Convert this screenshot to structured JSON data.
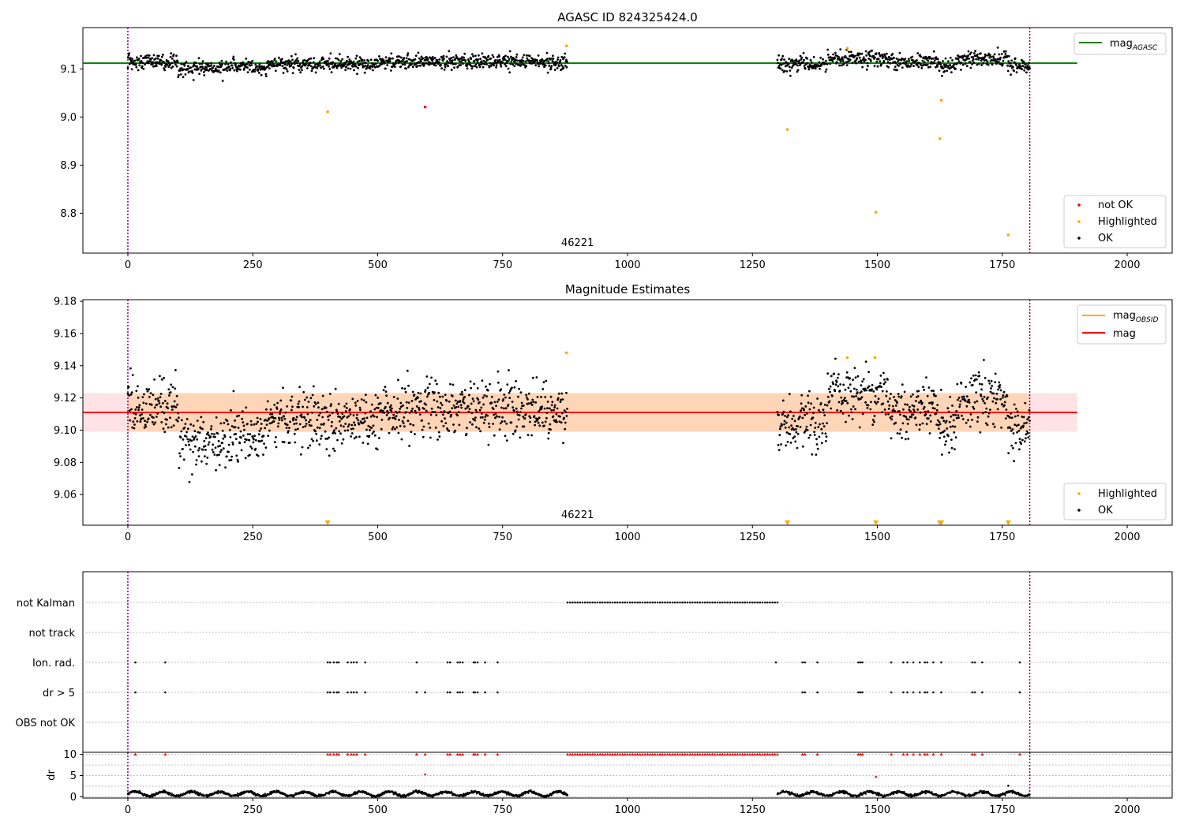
{
  "chart_data": [
    {
      "type": "scatter",
      "title": "AGASC ID 824325424.0",
      "xlabel": "",
      "ylabel": "",
      "xlim": [
        -90,
        2090
      ],
      "ylim": [
        8.717,
        9.186
      ],
      "x_ticks": [
        0,
        250,
        500,
        750,
        1000,
        1250,
        1500,
        1750,
        2000
      ],
      "y_ticks": [
        8.8,
        8.9,
        9.0,
        9.1
      ],
      "y_tick_labels": [
        "8.8",
        "8.9",
        "9.0",
        "9.1"
      ],
      "obsid_label": "46221",
      "obsid_label_x": 900,
      "boundaries": [
        0,
        1805
      ],
      "reference_line": {
        "name": "mag_AGASC",
        "value": 9.112,
        "x_range": [
          -90,
          1900
        ],
        "color": "#008000"
      },
      "series": [
        {
          "name": "OK",
          "color": "#000000",
          "segments": [
            [
              0,
              880
            ],
            [
              1300,
              1805
            ]
          ],
          "base": 9.112
        },
        {
          "name": "Highlighted",
          "color": "#FFA500",
          "points": [
            [
              400,
              9.011
            ],
            [
              878,
              9.148
            ],
            [
              1320,
              8.974
            ],
            [
              1440,
              9.143
            ],
            [
              1497,
              8.802
            ],
            [
              1625,
              8.955
            ],
            [
              1628,
              9.035
            ],
            [
              1762,
              8.755
            ]
          ]
        },
        {
          "name": "not OK",
          "color": "#FF0000",
          "points": [
            [
              595,
              9.021
            ]
          ]
        }
      ],
      "legend_lines": [
        {
          "label": "mag",
          "sub": "AGASC",
          "color": "#008000"
        }
      ],
      "legend_points": [
        {
          "label": "not OK",
          "color": "#FF0000"
        },
        {
          "label": "Highlighted",
          "color": "#FFA500"
        },
        {
          "label": "OK",
          "color": "#000000"
        }
      ]
    },
    {
      "type": "scatter",
      "title": "Magnitude Estimates",
      "xlabel": "",
      "ylabel": "",
      "xlim": [
        -90,
        2090
      ],
      "ylim": [
        9.041,
        9.181
      ],
      "x_ticks": [
        0,
        250,
        500,
        750,
        1000,
        1250,
        1500,
        1750,
        2000
      ],
      "y_ticks": [
        9.06,
        9.08,
        9.1,
        9.12,
        9.14,
        9.16,
        9.18
      ],
      "y_tick_labels": [
        "9.06",
        "9.08",
        "9.10",
        "9.12",
        "9.14",
        "9.16",
        "9.18"
      ],
      "obsid_label": "46221",
      "obsid_label_x": 900,
      "boundaries": [
        0,
        1805
      ],
      "mag_line": {
        "name": "mag",
        "value": 9.111,
        "x_range": [
          -90,
          1900
        ],
        "color": "#FF0000"
      },
      "mag_band": {
        "low": 9.099,
        "high": 9.123,
        "x_range": [
          -90,
          1900
        ],
        "color": "#FFB6C1"
      },
      "obsid_band": {
        "low": 9.099,
        "high": 9.123,
        "x_range": [
          0,
          1805
        ],
        "color": "#FFA500"
      },
      "series": [
        {
          "name": "OK",
          "color": "#000000",
          "segments": [
            [
              0,
              880
            ],
            [
              1300,
              1805
            ]
          ],
          "base": 9.109
        },
        {
          "name": "Highlighted",
          "color": "#FFA500",
          "points": [
            [
              878,
              9.148
            ],
            [
              1440,
              9.145
            ],
            [
              1495,
              9.145
            ]
          ]
        },
        {
          "name": "Highlighted (below axis)",
          "color": "#FFA500",
          "x": [
            400,
            1320,
            1497,
            1625,
            1628,
            1762
          ]
        }
      ],
      "legend_lines": [
        {
          "label": "mag",
          "sub": "OBSID",
          "color": "#FFA500"
        },
        {
          "label": "mag",
          "sub": "",
          "color": "#FF0000"
        }
      ],
      "legend_points": [
        {
          "label": "Highlighted",
          "color": "#FFA500"
        },
        {
          "label": "OK",
          "color": "#000000"
        }
      ]
    },
    {
      "type": "scatter",
      "title": "",
      "xlabel": "",
      "ylabel": "",
      "xlim": [
        -90,
        2090
      ],
      "boundaries": [
        0,
        1805
      ],
      "flag_rows": [
        "not Kalman",
        "not track",
        "Ion. rad.",
        "dr > 5",
        "OBS not OK"
      ],
      "flags": {
        "not Kalman": {
          "range": [
            880,
            1300
          ],
          "step": 5
        },
        "not track": {
          "x": []
        },
        "Ion. rad.": {
          "x": [
            15,
            75,
            400,
            405,
            412,
            418,
            422,
            440,
            447,
            452,
            458,
            475,
            578,
            640,
            645,
            660,
            665,
            670,
            692,
            695,
            700,
            715,
            740,
            1297,
            1350,
            1355,
            1380,
            1462,
            1466,
            1470,
            1528,
            1552,
            1560,
            1572,
            1585,
            1595,
            1600,
            1612,
            1628,
            1690,
            1695,
            1710,
            1785
          ]
        },
        "dr > 5": {
          "x": [
            15,
            75,
            400,
            405,
            412,
            418,
            422,
            440,
            447,
            452,
            458,
            475,
            578,
            595,
            640,
            645,
            660,
            665,
            670,
            692,
            695,
            700,
            715,
            740,
            1350,
            1355,
            1380,
            1462,
            1466,
            1470,
            1528,
            1552,
            1560,
            1572,
            1585,
            1595,
            1600,
            1612,
            1628,
            1690,
            1695,
            1710,
            1785
          ]
        },
        "OBS not OK": {
          "x": []
        }
      }
    },
    {
      "type": "scatter",
      "title": "",
      "xlabel": "",
      "ylabel": "dr",
      "xlim": [
        -90,
        2090
      ],
      "ylim": [
        -0.3,
        10.5
      ],
      "x_ticks": [
        0,
        250,
        500,
        750,
        1000,
        1250,
        1500,
        1750,
        2000
      ],
      "y_ticks": [
        0,
        5,
        10
      ],
      "y_tick_labels": [
        "0",
        "5",
        "10"
      ],
      "boundaries": [
        0,
        1805
      ],
      "clip_value": 10,
      "segments": [
        [
          0,
          880
        ],
        [
          1300,
          1805
        ]
      ],
      "outliers": [
        [
          595,
          5.3
        ],
        [
          1497,
          4.7
        ],
        [
          1762,
          2.6
        ]
      ],
      "clipped": {
        "color": "#FF0000"
      }
    }
  ]
}
